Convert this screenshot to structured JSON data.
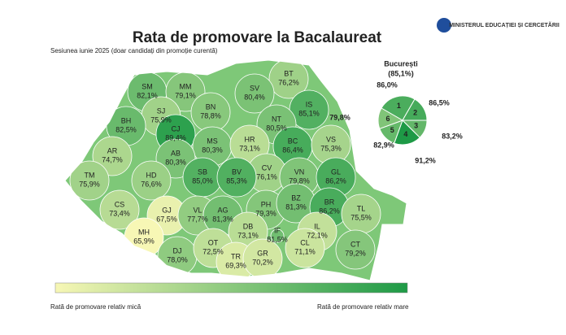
{
  "header": {
    "title": "Rata de promovare la Bacalaureat",
    "subtitle": "Sesiunea iunie 2025 (doar candidați din promoție curentă)",
    "ministry": "MINISTERUL EDUCAȚIEI ȘI CERCETĂRII"
  },
  "counties": [
    {
      "code": "SM",
      "value": 82.1,
      "label": "82,1%"
    },
    {
      "code": "MM",
      "value": 79.1,
      "label": "79,1%"
    },
    {
      "code": "BT",
      "value": 76.2,
      "label": "76,2%"
    },
    {
      "code": "SV",
      "value": 80.4,
      "label": "80,4%"
    },
    {
      "code": "SJ",
      "value": 75.9,
      "label": "75,9%"
    },
    {
      "code": "BN",
      "value": 78.8,
      "label": "78,8%"
    },
    {
      "code": "IS",
      "value": 85.1,
      "label": "85,1%"
    },
    {
      "code": "BH",
      "value": 82.5,
      "label": "82,5%"
    },
    {
      "code": "CJ",
      "value": 89.4,
      "label": "89,4%"
    },
    {
      "code": "NT",
      "value": 80.5,
      "label": "80,5%"
    },
    {
      "code": "MS",
      "value": 80.3,
      "label": "80,3%"
    },
    {
      "code": "HR",
      "value": 73.1,
      "label": "73,1%"
    },
    {
      "code": "BC",
      "value": 86.4,
      "label": "86,4%"
    },
    {
      "code": "VS",
      "value": 75.3,
      "label": "75,3%"
    },
    {
      "code": "AR",
      "value": 74.7,
      "label": "74,7%"
    },
    {
      "code": "AB",
      "value": 80.3,
      "label": "80,3%"
    },
    {
      "code": "TM",
      "value": 75.9,
      "label": "75,9%"
    },
    {
      "code": "HD",
      "value": 76.6,
      "label": "76,6%"
    },
    {
      "code": "CV",
      "value": 76.1,
      "label": "76,1%"
    },
    {
      "code": "SB",
      "value": 85.0,
      "label": "85,0%"
    },
    {
      "code": "BV",
      "value": 85.3,
      "label": "85,3%"
    },
    {
      "code": "VN",
      "value": 79.8,
      "label": "79,8%"
    },
    {
      "code": "GL",
      "value": 86.2,
      "label": "86,2%"
    },
    {
      "code": "CS",
      "value": 73.4,
      "label": "73,4%"
    },
    {
      "code": "GJ",
      "value": 67.5,
      "label": "67,5%"
    },
    {
      "code": "VL",
      "value": 77.7,
      "label": "77,7%"
    },
    {
      "code": "AG",
      "value": 81.3,
      "label": "81,3%"
    },
    {
      "code": "PH",
      "value": 79.3,
      "label": "79,3%"
    },
    {
      "code": "BZ",
      "value": 81.3,
      "label": "81,3%"
    },
    {
      "code": "BR",
      "value": 86.2,
      "label": "86,2%"
    },
    {
      "code": "TL",
      "value": 75.5,
      "label": "75,5%"
    },
    {
      "code": "MH",
      "value": 65.9,
      "label": "65,9%"
    },
    {
      "code": "DB",
      "value": 73.1,
      "label": "73,1%"
    },
    {
      "code": "IF",
      "value": 81.5,
      "label": "81,5%"
    },
    {
      "code": "IL",
      "value": 72.1,
      "label": "72,1%"
    },
    {
      "code": "DJ",
      "value": 78.0,
      "label": "78,0%"
    },
    {
      "code": "OT",
      "value": 72.5,
      "label": "72,5%"
    },
    {
      "code": "TR",
      "value": 69.3,
      "label": "69,3%"
    },
    {
      "code": "GR",
      "value": 70.2,
      "label": "70,2%"
    },
    {
      "code": "CL",
      "value": 71.1,
      "label": "71,1%"
    },
    {
      "code": "CT",
      "value": 79.2,
      "label": "79,2%"
    }
  ],
  "bucharest": {
    "title": "București",
    "total": {
      "value": 85.1,
      "label": "(85,1%)"
    },
    "sectors": [
      {
        "sector": "1",
        "value": 86.0,
        "label": "86,0%"
      },
      {
        "sector": "2",
        "value": 86.5,
        "label": "86,5%"
      },
      {
        "sector": "3",
        "value": 83.2,
        "label": "83,2%"
      },
      {
        "sector": "4",
        "value": 91.2,
        "label": "91,2%"
      },
      {
        "sector": "5",
        "value": 82.9,
        "label": "82,9%"
      },
      {
        "sector": "6",
        "value": 79.8,
        "label": "79,8%"
      }
    ]
  },
  "legend": {
    "low": "Rată de promovare relativ mică",
    "high": "Rată de promovare relativ mare"
  }
}
